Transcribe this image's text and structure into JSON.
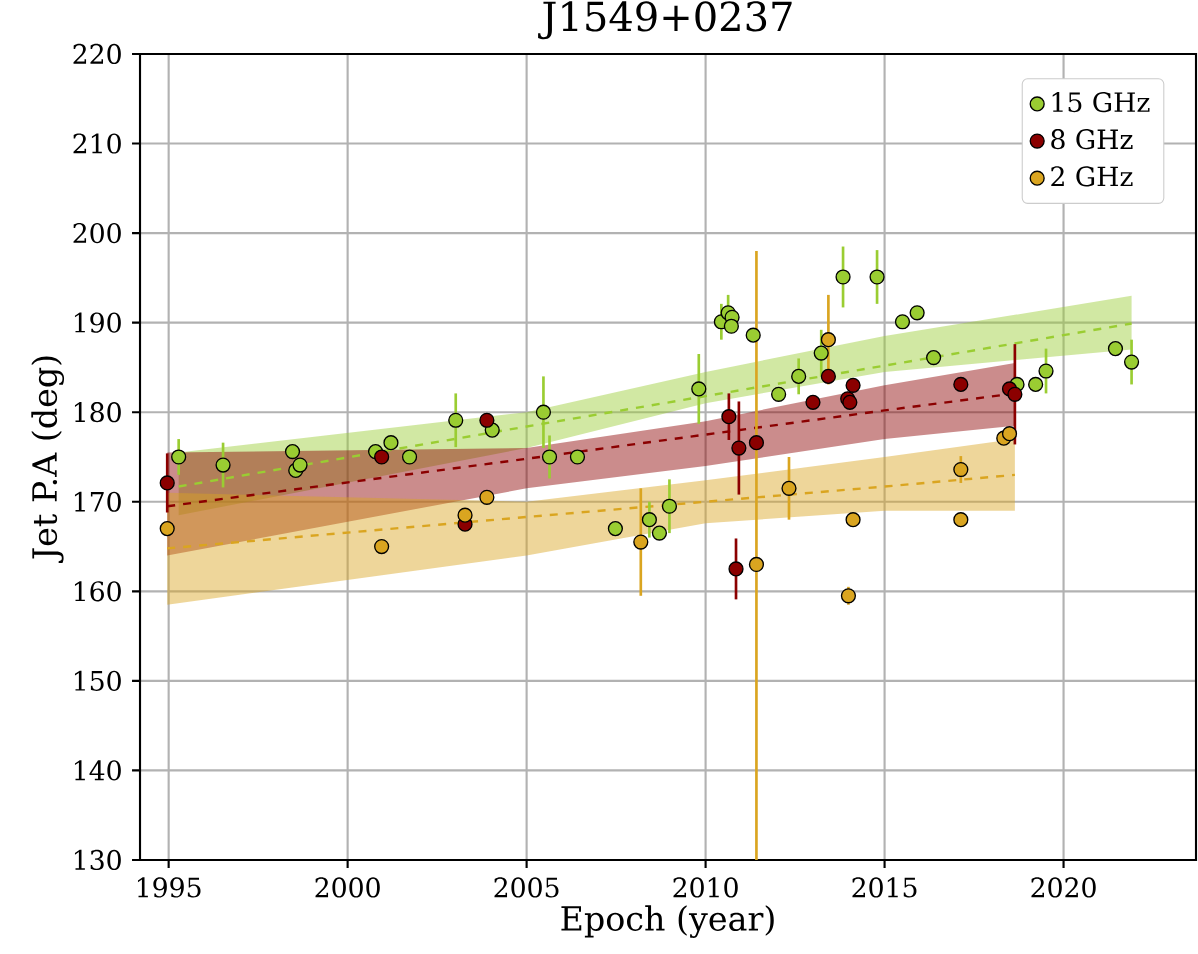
{
  "chart_data": {
    "type": "scatter",
    "title": "J1549+0237",
    "xlabel": "Epoch (year)",
    "ylabel": "Jet P.A (deg)",
    "xlim": [
      1994.2,
      2023.7
    ],
    "xticks": [
      1995,
      2000,
      2005,
      2010,
      2015,
      2020
    ],
    "ylim": [
      130,
      220
    ],
    "yticks": [
      130,
      140,
      150,
      160,
      170,
      180,
      190,
      200,
      210,
      220
    ],
    "grid": true,
    "legend": "top right",
    "marker": "circle",
    "series": [
      {
        "name": "15 GHz",
        "color": "#9acd32",
        "x": [
          1995.28,
          1996.52,
          1998.46,
          1998.55,
          1998.67,
          2000.78,
          2001.21,
          2001.73,
          2003.02,
          2004.04,
          2005.47,
          2005.64,
          2006.42,
          2007.48,
          2008.43,
          2008.71,
          2008.99,
          2009.81,
          2010.44,
          2010.63,
          2010.74,
          2010.72,
          2011.33,
          2012.04,
          2012.6,
          2013.23,
          2013.84,
          2014.79,
          2015.5,
          2015.91,
          2016.37,
          2018.7,
          2019.22,
          2019.51,
          2021.45,
          2021.9
        ],
        "values": [
          175.0,
          174.1,
          175.6,
          173.5,
          174.1,
          175.6,
          176.6,
          175.0,
          179.1,
          178.0,
          180.0,
          175.0,
          175.0,
          167.0,
          168.0,
          166.5,
          169.5,
          182.6,
          190.1,
          191.1,
          190.6,
          189.6,
          188.6,
          182.0,
          184.0,
          186.6,
          195.1,
          195.1,
          190.1,
          191.1,
          186.1,
          183.1,
          183.1,
          184.6,
          187.1,
          185.6
        ],
        "errors": [
          2,
          2.5,
          null,
          null,
          null,
          null,
          null,
          null,
          3,
          null,
          4,
          2.4,
          null,
          null,
          2,
          null,
          3,
          3.9,
          2,
          2,
          null,
          null,
          null,
          null,
          2,
          2.6,
          3.4,
          3,
          null,
          null,
          null,
          null,
          null,
          2.5,
          null,
          2.5
        ]
      },
      {
        "name": "8 GHz",
        "color": "#8b0000",
        "x": [
          1994.96,
          2000.95,
          2003.28,
          2003.89,
          2010.65,
          2010.85,
          2010.93,
          2011.42,
          2013.0,
          2013.43,
          2013.97,
          2014.03,
          2014.12,
          2017.13,
          2018.49,
          2018.64
        ],
        "values": [
          172.1,
          175.0,
          167.5,
          179.1,
          179.5,
          162.5,
          176.0,
          176.6,
          181.1,
          184.0,
          181.5,
          181.1,
          183.0,
          183.1,
          182.6,
          182.0
        ],
        "errors": [
          3.3,
          null,
          null,
          null,
          2.6,
          3.4,
          5.2,
          null,
          null,
          null,
          null,
          null,
          null,
          null,
          null,
          5.6
        ]
      },
      {
        "name": "2 GHz",
        "color": "#daa520",
        "x": [
          1994.96,
          2000.95,
          2003.28,
          2003.89,
          2008.19,
          2011.42,
          2012.33,
          2013.43,
          2013.99,
          2014.12,
          2017.13,
          2017.13,
          2018.33,
          2018.49
        ],
        "values": [
          167.0,
          165.0,
          168.5,
          170.5,
          165.5,
          163.0,
          171.5,
          188.1,
          159.5,
          168.0,
          173.6,
          168.0,
          177.1,
          177.6
        ],
        "errors": [
          null,
          null,
          null,
          null,
          6,
          [
            130,
            198
          ],
          3.5,
          5,
          1,
          null,
          1.5,
          null,
          null,
          null
        ]
      },
      {
        "type": "line",
        "line_style": "dashed",
        "marker": "none",
        "color": "#9acd32",
        "x": [
          1995.28,
          2005,
          2010,
          2015,
          2021.9
        ],
        "values": [
          171.7,
          178.4,
          181.8,
          185.2,
          189.9
        ],
        "lower": [
          168.5,
          176,
          181,
          184.5,
          187
        ],
        "upper": [
          175.5,
          180,
          184.5,
          188.5,
          193
        ]
      },
      {
        "type": "line",
        "line_style": "dashed",
        "marker": "none",
        "color": "#8b0000",
        "x": [
          1994.96,
          2005,
          2010,
          2015,
          2018.64
        ],
        "values": [
          169.5,
          174.8,
          177.5,
          180.2,
          182.1
        ],
        "lower": [
          164,
          171.5,
          174,
          177,
          178.5
        ],
        "upper": [
          175.5,
          176,
          179,
          183,
          185.5
        ]
      },
      {
        "type": "line",
        "line_style": "dashed",
        "marker": "none",
        "color": "#daa520",
        "x": [
          1994.96,
          2005,
          2010,
          2015,
          2018.64
        ],
        "values": [
          164.8,
          168.3,
          170.0,
          171.7,
          173.0
        ],
        "lower": [
          158.5,
          164,
          167.6,
          169,
          169
        ],
        "upper": [
          171,
          170,
          172.4,
          175,
          177
        ]
      }
    ]
  }
}
